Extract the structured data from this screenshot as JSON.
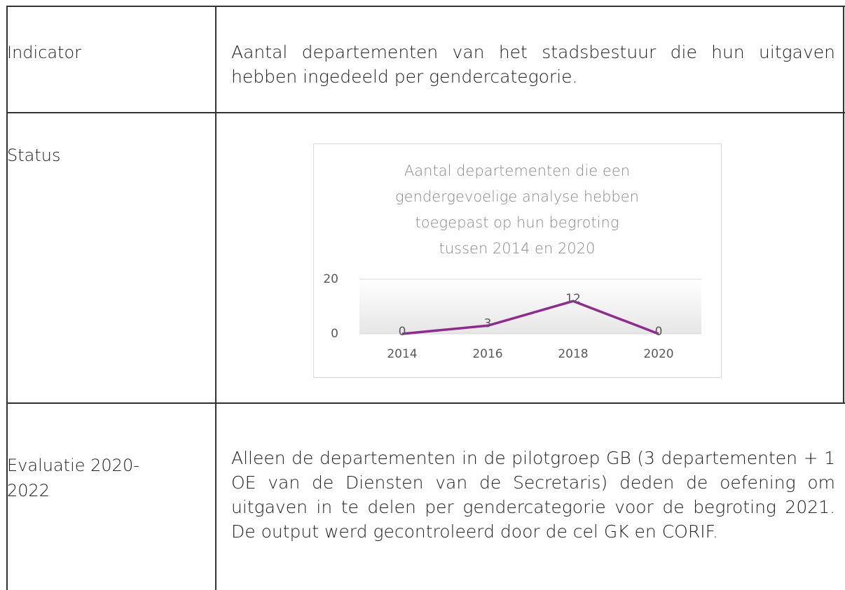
{
  "table": {
    "rows": [
      [
        "Indicator",
        "Aantal departementen van het stadsbestuur die hun uitgaven hebben ingedeeld per gendercategorie."
      ],
      [
        "Status"
      ],
      [
        "Evaluatie 2020-2022",
        "Alleen de departementen in de pilotgroep GB (3 departementen + 1 OE van de Diensten van de Secretaris) deden de oefening om uitgaven in te delen per gendercategorie voor de begroting 2021. De output werd gecontroleerd door de cel GK en CORIF."
      ]
    ]
  },
  "chart_data": {
    "type": "line",
    "title": "Aantal departementen die een gendergevoelige analyse hebben toegepast op hun begroting tussen 2014 en 2020",
    "categories": [
      "2014",
      "2016",
      "2018",
      "2020"
    ],
    "values": [
      0,
      3,
      12,
      0
    ],
    "color": "#8e2c8e",
    "ylim": [
      0,
      20
    ],
    "yticks": [
      0,
      20
    ],
    "grid": true
  }
}
